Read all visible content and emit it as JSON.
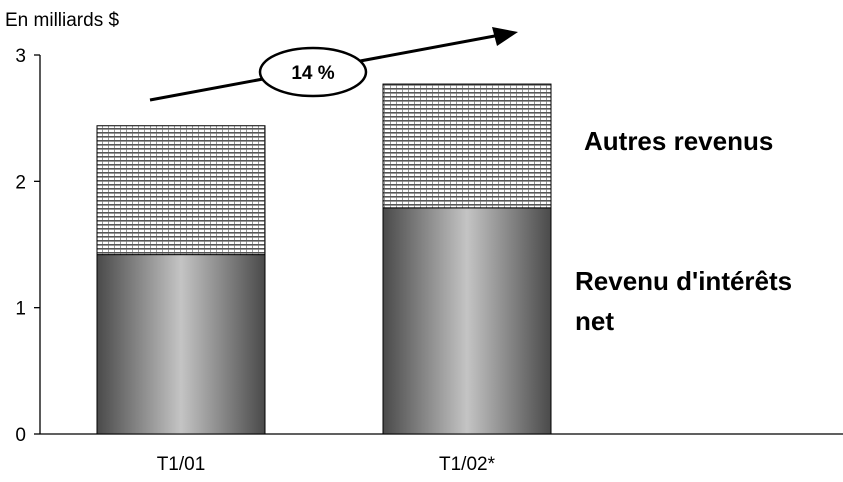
{
  "chart_data": {
    "type": "bar",
    "stacked": true,
    "unit_label": "En milliards $",
    "categories": [
      "T1/01",
      "T1/02*"
    ],
    "ylim": [
      0,
      3
    ],
    "yticks": [
      "0",
      "1",
      "2",
      "3"
    ],
    "series": [
      {
        "name": "Revenu d'intérêts net",
        "label_lines": [
          "Revenu d'intérêts",
          "net"
        ],
        "values": [
          1.42,
          1.79
        ],
        "color": "#8a8a8a"
      },
      {
        "name": "Autres revenus",
        "label_lines": [
          "Autres revenus"
        ],
        "values": [
          1.02,
          0.98
        ],
        "color": "#bdbdbd"
      }
    ],
    "growth_annotation": "14 %",
    "grid": false
  }
}
